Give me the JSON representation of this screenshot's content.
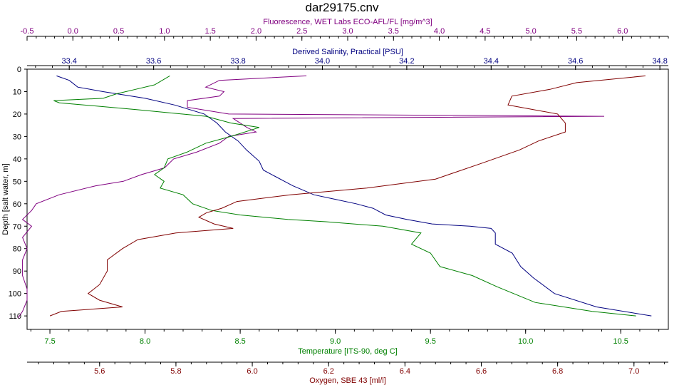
{
  "chart_data": {
    "type": "line",
    "title": "dar29175.cnv",
    "grid": false,
    "legend": "none",
    "y_axis": {
      "label": "Depth [salt water, m]",
      "range": [
        0,
        116
      ],
      "ticks": [
        0,
        10,
        20,
        30,
        40,
        50,
        60,
        70,
        80,
        90,
        100,
        110
      ],
      "inverted": true,
      "color": "#000000"
    },
    "x_axes": [
      {
        "id": "fluorescence",
        "label": "Fluorescence, WET Labs ECO-AFL/FL [mg/m^3]",
        "position": "top",
        "range": [
          -0.5,
          6.5
        ],
        "ticks": [
          "-0.5",
          "0.0",
          "0.5",
          "1.0",
          "1.5",
          "2.0",
          "2.5",
          "3.0",
          "3.5",
          "4.0",
          "4.5",
          "5.0",
          "5.5",
          "6.0"
        ],
        "color": "#800080"
      },
      {
        "id": "salinity",
        "label": "Derived Salinity, Practical [PSU]",
        "position": "top",
        "range": [
          33.3,
          34.82
        ],
        "ticks": [
          "33.4",
          "33.6",
          "33.8",
          "34.0",
          "34.2",
          "34.4",
          "34.6",
          "34.8"
        ],
        "color": "#000080"
      },
      {
        "id": "temperature",
        "label": "Temperature [ITS-90, deg C]",
        "position": "bottom",
        "range": [
          7.38,
          10.75
        ],
        "ticks": [
          "7.5",
          "8.0",
          "8.5",
          "9.0",
          "9.5",
          "10.0",
          "10.5"
        ],
        "color": "#008000"
      },
      {
        "id": "oxygen",
        "label": "Oxygen, SBE 43 [ml/l]",
        "position": "bottom",
        "range": [
          5.41,
          7.09
        ],
        "ticks": [
          "5.6",
          "5.8",
          "6.0",
          "6.2",
          "6.4",
          "6.6",
          "6.8",
          "7.0"
        ],
        "color": "#800000"
      }
    ],
    "series": [
      {
        "axis": "fluorescence",
        "color": "#800080",
        "points": [
          [
            2.55,
            3
          ],
          [
            1.6,
            5
          ],
          [
            1.45,
            8
          ],
          [
            1.65,
            10
          ],
          [
            1.6,
            12
          ],
          [
            1.25,
            14
          ],
          [
            1.25,
            17
          ],
          [
            1.7,
            20
          ],
          [
            5.8,
            21
          ],
          [
            1.75,
            22
          ],
          [
            1.9,
            26
          ],
          [
            2.0,
            28
          ],
          [
            1.7,
            30
          ],
          [
            1.6,
            33
          ],
          [
            1.35,
            37
          ],
          [
            1.1,
            40
          ],
          [
            1.0,
            44
          ],
          [
            0.75,
            47
          ],
          [
            0.55,
            50
          ],
          [
            0.25,
            52
          ],
          [
            -0.15,
            56
          ],
          [
            -0.4,
            60
          ],
          [
            -0.45,
            63
          ],
          [
            -0.55,
            67
          ],
          [
            -0.45,
            70
          ],
          [
            -0.55,
            75
          ],
          [
            -0.5,
            80
          ],
          [
            -0.55,
            85
          ],
          [
            -0.55,
            92
          ],
          [
            -0.5,
            98
          ],
          [
            -0.5,
            103
          ],
          [
            -0.55,
            108
          ],
          [
            -0.6,
            111
          ]
        ]
      },
      {
        "axis": "salinity",
        "color": "#000080",
        "points": [
          [
            33.37,
            3
          ],
          [
            33.4,
            5
          ],
          [
            33.42,
            8
          ],
          [
            33.48,
            10
          ],
          [
            33.58,
            13
          ],
          [
            33.65,
            16
          ],
          [
            33.72,
            20
          ],
          [
            33.75,
            24
          ],
          [
            33.77,
            28
          ],
          [
            33.8,
            32
          ],
          [
            33.82,
            36
          ],
          [
            33.85,
            41
          ],
          [
            33.86,
            45
          ],
          [
            33.89,
            48
          ],
          [
            33.93,
            52
          ],
          [
            33.98,
            56
          ],
          [
            34.03,
            58
          ],
          [
            34.08,
            60
          ],
          [
            34.12,
            62
          ],
          [
            34.15,
            65
          ],
          [
            34.2,
            67
          ],
          [
            34.26,
            69
          ],
          [
            34.35,
            70
          ],
          [
            34.4,
            71
          ],
          [
            34.41,
            73
          ],
          [
            34.41,
            78
          ],
          [
            34.45,
            82
          ],
          [
            34.47,
            88
          ],
          [
            34.5,
            93
          ],
          [
            34.55,
            100
          ],
          [
            34.65,
            106
          ],
          [
            34.78,
            110
          ]
        ]
      },
      {
        "axis": "temperature",
        "color": "#008000",
        "points": [
          [
            8.13,
            3
          ],
          [
            8.05,
            7
          ],
          [
            7.95,
            9
          ],
          [
            7.85,
            11
          ],
          [
            7.78,
            13
          ],
          [
            7.52,
            14
          ],
          [
            7.55,
            15
          ],
          [
            7.95,
            18
          ],
          [
            8.32,
            21
          ],
          [
            8.45,
            24
          ],
          [
            8.6,
            26
          ],
          [
            8.45,
            30
          ],
          [
            8.32,
            33
          ],
          [
            8.22,
            37
          ],
          [
            8.12,
            40
          ],
          [
            8.1,
            44
          ],
          [
            8.05,
            47
          ],
          [
            8.1,
            50
          ],
          [
            8.08,
            53
          ],
          [
            8.2,
            56
          ],
          [
            8.25,
            60
          ],
          [
            8.35,
            63
          ],
          [
            8.5,
            65
          ],
          [
            8.75,
            67
          ],
          [
            8.95,
            68
          ],
          [
            9.25,
            70
          ],
          [
            9.45,
            73
          ],
          [
            9.4,
            78
          ],
          [
            9.5,
            82
          ],
          [
            9.55,
            88
          ],
          [
            9.72,
            92
          ],
          [
            9.85,
            97
          ],
          [
            10.05,
            104
          ],
          [
            10.35,
            108
          ],
          [
            10.58,
            110
          ]
        ]
      },
      {
        "axis": "oxygen",
        "color": "#800000",
        "points": [
          [
            7.03,
            3
          ],
          [
            6.85,
            6
          ],
          [
            6.78,
            9
          ],
          [
            6.68,
            12
          ],
          [
            6.67,
            16
          ],
          [
            6.8,
            20
          ],
          [
            6.82,
            24
          ],
          [
            6.82,
            28
          ],
          [
            6.75,
            32
          ],
          [
            6.7,
            36
          ],
          [
            6.6,
            42
          ],
          [
            6.48,
            49
          ],
          [
            6.3,
            53
          ],
          [
            6.1,
            56
          ],
          [
            5.96,
            59
          ],
          [
            5.92,
            62
          ],
          [
            5.88,
            64
          ],
          [
            5.86,
            66
          ],
          [
            5.9,
            69
          ],
          [
            5.95,
            71
          ],
          [
            5.8,
            73
          ],
          [
            5.7,
            76
          ],
          [
            5.66,
            80
          ],
          [
            5.62,
            85
          ],
          [
            5.62,
            90
          ],
          [
            5.6,
            96
          ],
          [
            5.57,
            100
          ],
          [
            5.6,
            103
          ],
          [
            5.66,
            106
          ],
          [
            5.5,
            108
          ],
          [
            5.47,
            110
          ]
        ]
      }
    ]
  }
}
